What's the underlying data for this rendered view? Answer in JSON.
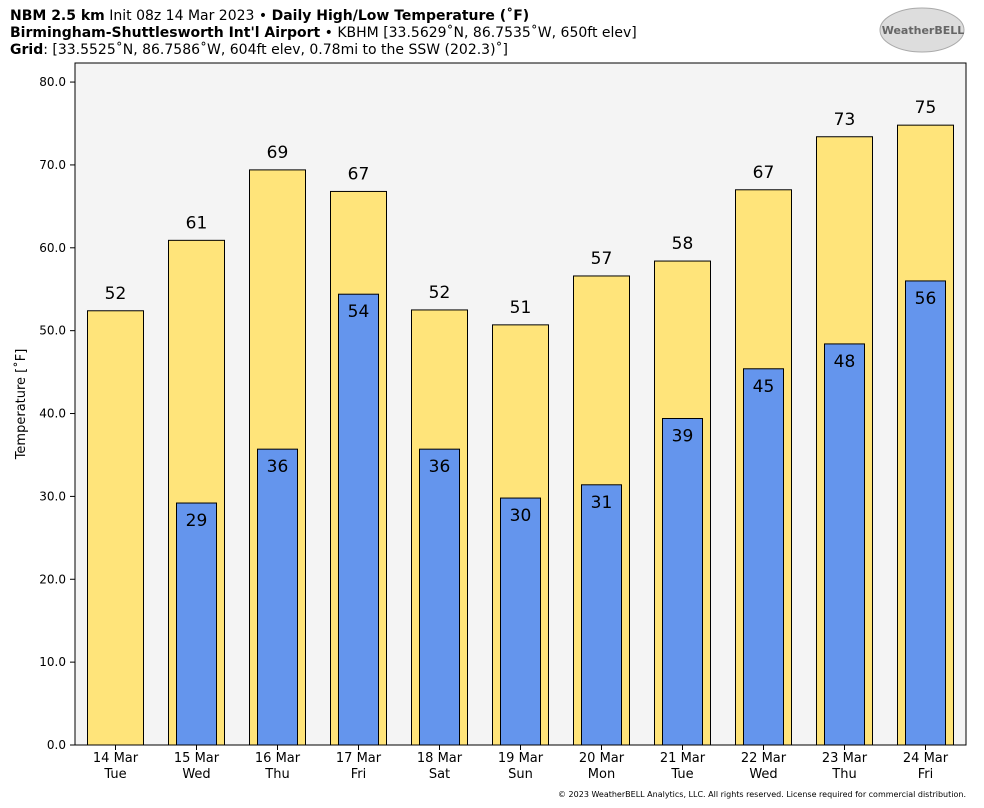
{
  "chart_data": {
    "type": "bar",
    "header": [
      [
        {
          "text": "NBM 2.5 km",
          "bold": true
        },
        {
          "text": " Init 08z 14 Mar 2023 • ",
          "bold": false
        },
        {
          "text": "Daily High/Low Temperature (˚F)",
          "bold": true
        }
      ],
      [
        {
          "text": "Birmingham-Shuttlesworth Int'l Airport",
          "bold": true
        },
        {
          "text": " • KBHM [33.5629˚N, 86.7535˚W, 650ft elev]",
          "bold": false
        }
      ],
      [
        {
          "text": "Grid",
          "bold": true
        },
        {
          "text": ": [33.5525˚N, 86.7586˚W, 604ft elev, 0.78mi to the SSW (202.3)˚]",
          "bold": false
        }
      ]
    ],
    "logo": "WeatherBELL",
    "ylabel": "Temperature [˚F]",
    "footer": "© 2023 WeatherBELL Analytics, LLC. All rights reserved. License required for commercial distribution.",
    "categories": [
      "14 Mar",
      "15 Mar",
      "16 Mar",
      "17 Mar",
      "18 Mar",
      "19 Mar",
      "20 Mar",
      "21 Mar",
      "22 Mar",
      "23 Mar",
      "24 Mar"
    ],
    "weekdays": [
      "Tue",
      "Wed",
      "Thu",
      "Fri",
      "Sat",
      "Sun",
      "Mon",
      "Tue",
      "Wed",
      "Thu",
      "Fri"
    ],
    "series": [
      {
        "name": "High",
        "color": "#ffe47a",
        "values": [
          52.4,
          60.9,
          69.4,
          66.8,
          52.5,
          50.7,
          56.6,
          58.4,
          67.0,
          73.4,
          74.8
        ],
        "value_labels": [
          "52",
          "61",
          "69",
          "67",
          "52",
          "51",
          "57",
          "58",
          "67",
          "73",
          "75"
        ]
      },
      {
        "name": "Low",
        "color": "#6495ed",
        "values": [
          null,
          29.2,
          35.7,
          54.4,
          35.7,
          29.8,
          31.4,
          39.4,
          45.4,
          48.4,
          56.0
        ],
        "value_labels": [
          null,
          "29",
          "36",
          "54",
          "36",
          "30",
          "31",
          "39",
          "45",
          "48",
          "56"
        ]
      }
    ],
    "ylim": [
      0,
      82.3
    ],
    "yticks": [
      {
        "value": 0,
        "label": "0.0"
      },
      {
        "value": 10,
        "label": "10.0"
      },
      {
        "value": 20,
        "label": "20.0"
      },
      {
        "value": 30,
        "label": "30.0"
      },
      {
        "value": 40,
        "label": "40.0"
      },
      {
        "value": 50,
        "label": "50.0"
      },
      {
        "value": 60,
        "label": "60.0"
      },
      {
        "value": 70,
        "label": "70.0"
      },
      {
        "value": 80,
        "label": "80.0"
      }
    ],
    "background": "#f4f4f4"
  }
}
